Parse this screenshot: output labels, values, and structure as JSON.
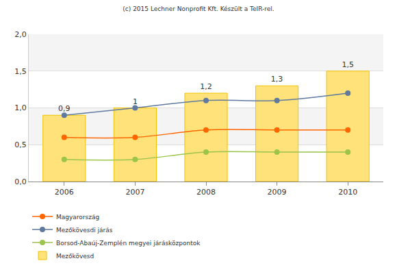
{
  "chart_data": {
    "type": "bar",
    "title": "(c) 2015 Lechner Nonprofit Kft. Készült a TeIR-rel.",
    "categories": [
      "2006",
      "2007",
      "2008",
      "2009",
      "2010"
    ],
    "series": [
      {
        "name": "Magyarország",
        "type": "line",
        "color": "#ff6600",
        "marker": "circle",
        "values": [
          0.6,
          0.6,
          0.7,
          0.7,
          0.7
        ]
      },
      {
        "name": "Mezőkövesdi járás",
        "type": "line",
        "color": "#5f7a9e",
        "marker": "circle",
        "values": [
          0.9,
          1.0,
          1.1,
          1.1,
          1.2
        ]
      },
      {
        "name": "Borsod-Abaúj-Zemplén megyei járásközpontok",
        "type": "line",
        "color": "#9bc44b",
        "marker": "circle",
        "values": [
          0.3,
          0.3,
          0.4,
          0.4,
          0.4
        ]
      },
      {
        "name": "Mezőkövesd",
        "type": "bar",
        "color": "#ffe27a",
        "data_labels": true,
        "values": [
          0.9,
          1,
          1.2,
          1.3,
          1.5
        ],
        "value_labels": [
          "0,9",
          "1",
          "1,2",
          "1,3",
          "1,5"
        ]
      }
    ],
    "ylim": [
      0,
      2
    ],
    "yticks": [
      {
        "value": 0,
        "label": "0,0"
      },
      {
        "value": 0.5,
        "label": "0,5"
      },
      {
        "value": 1,
        "label": "1,0"
      },
      {
        "value": 1.5,
        "label": "1,5"
      },
      {
        "value": 2,
        "label": "2,0"
      }
    ],
    "grid": true,
    "legend": "bottom-left"
  }
}
